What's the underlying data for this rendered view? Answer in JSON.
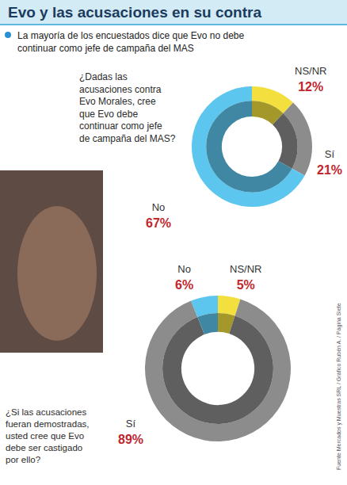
{
  "title": "Evo y las acusaciones en su contra",
  "subtitle": "La mayoría de los encuestados dice que Evo no debe continuar como jefe de campaña del MAS",
  "source": "Fuente Mercados y Muestras SRL / Gráfico Rubén A. / Página Siete",
  "chart_data": [
    {
      "type": "pie",
      "title": "¿Dadas las acusaciones contra Evo Morales, cree que Evo debe continuar como jefe de campaña del MAS?",
      "categories": [
        "NS/NR",
        "Sí",
        "No"
      ],
      "values": [
        12,
        21,
        67
      ],
      "value_labels": [
        "12%",
        "21%",
        "67%"
      ],
      "colors": [
        "#f3e03e",
        "#8c8c8c",
        "#5cc6ee"
      ],
      "data_labels": true
    },
    {
      "type": "pie",
      "title": "¿Si las acusaciones fueran demostradas, usted cree que Evo debe ser castigado por ello?",
      "categories": [
        "NS/NR",
        "Sí",
        "No"
      ],
      "values": [
        5,
        89,
        6
      ],
      "value_labels": [
        "5%",
        "89%",
        "6%"
      ],
      "colors": [
        "#f3e03e",
        "#8c8c8c",
        "#5cc6ee"
      ],
      "data_labels": true
    }
  ]
}
